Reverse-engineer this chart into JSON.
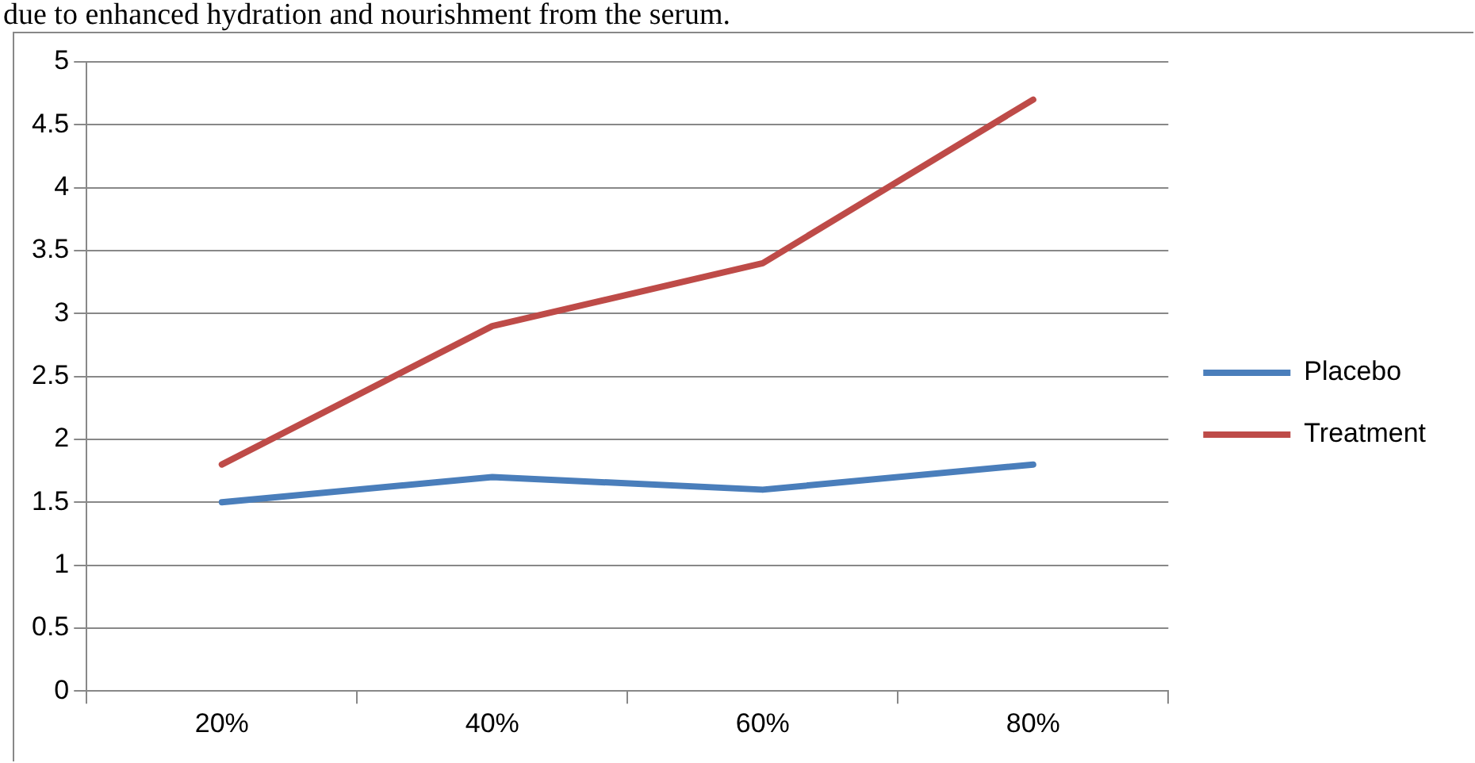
{
  "chart_data": {
    "type": "line",
    "annotations": [
      "due to enhanced hydration and nourishment from the serum."
    ],
    "categories": [
      "20%",
      "40%",
      "60%",
      "80%"
    ],
    "series": [
      {
        "name": "Placebo",
        "color": "#4a7ebb",
        "values": [
          1.5,
          1.7,
          1.6,
          1.8
        ]
      },
      {
        "name": "Treatment",
        "color": "#be4b48",
        "values": [
          1.8,
          2.9,
          3.4,
          4.7
        ]
      }
    ],
    "ylim": [
      0,
      5
    ],
    "yticks": [
      0,
      0.5,
      1,
      1.5,
      2,
      2.5,
      3,
      3.5,
      4,
      4.5,
      5
    ],
    "grid": "y",
    "legend": "right",
    "marker": "none",
    "line_style": "solid"
  }
}
